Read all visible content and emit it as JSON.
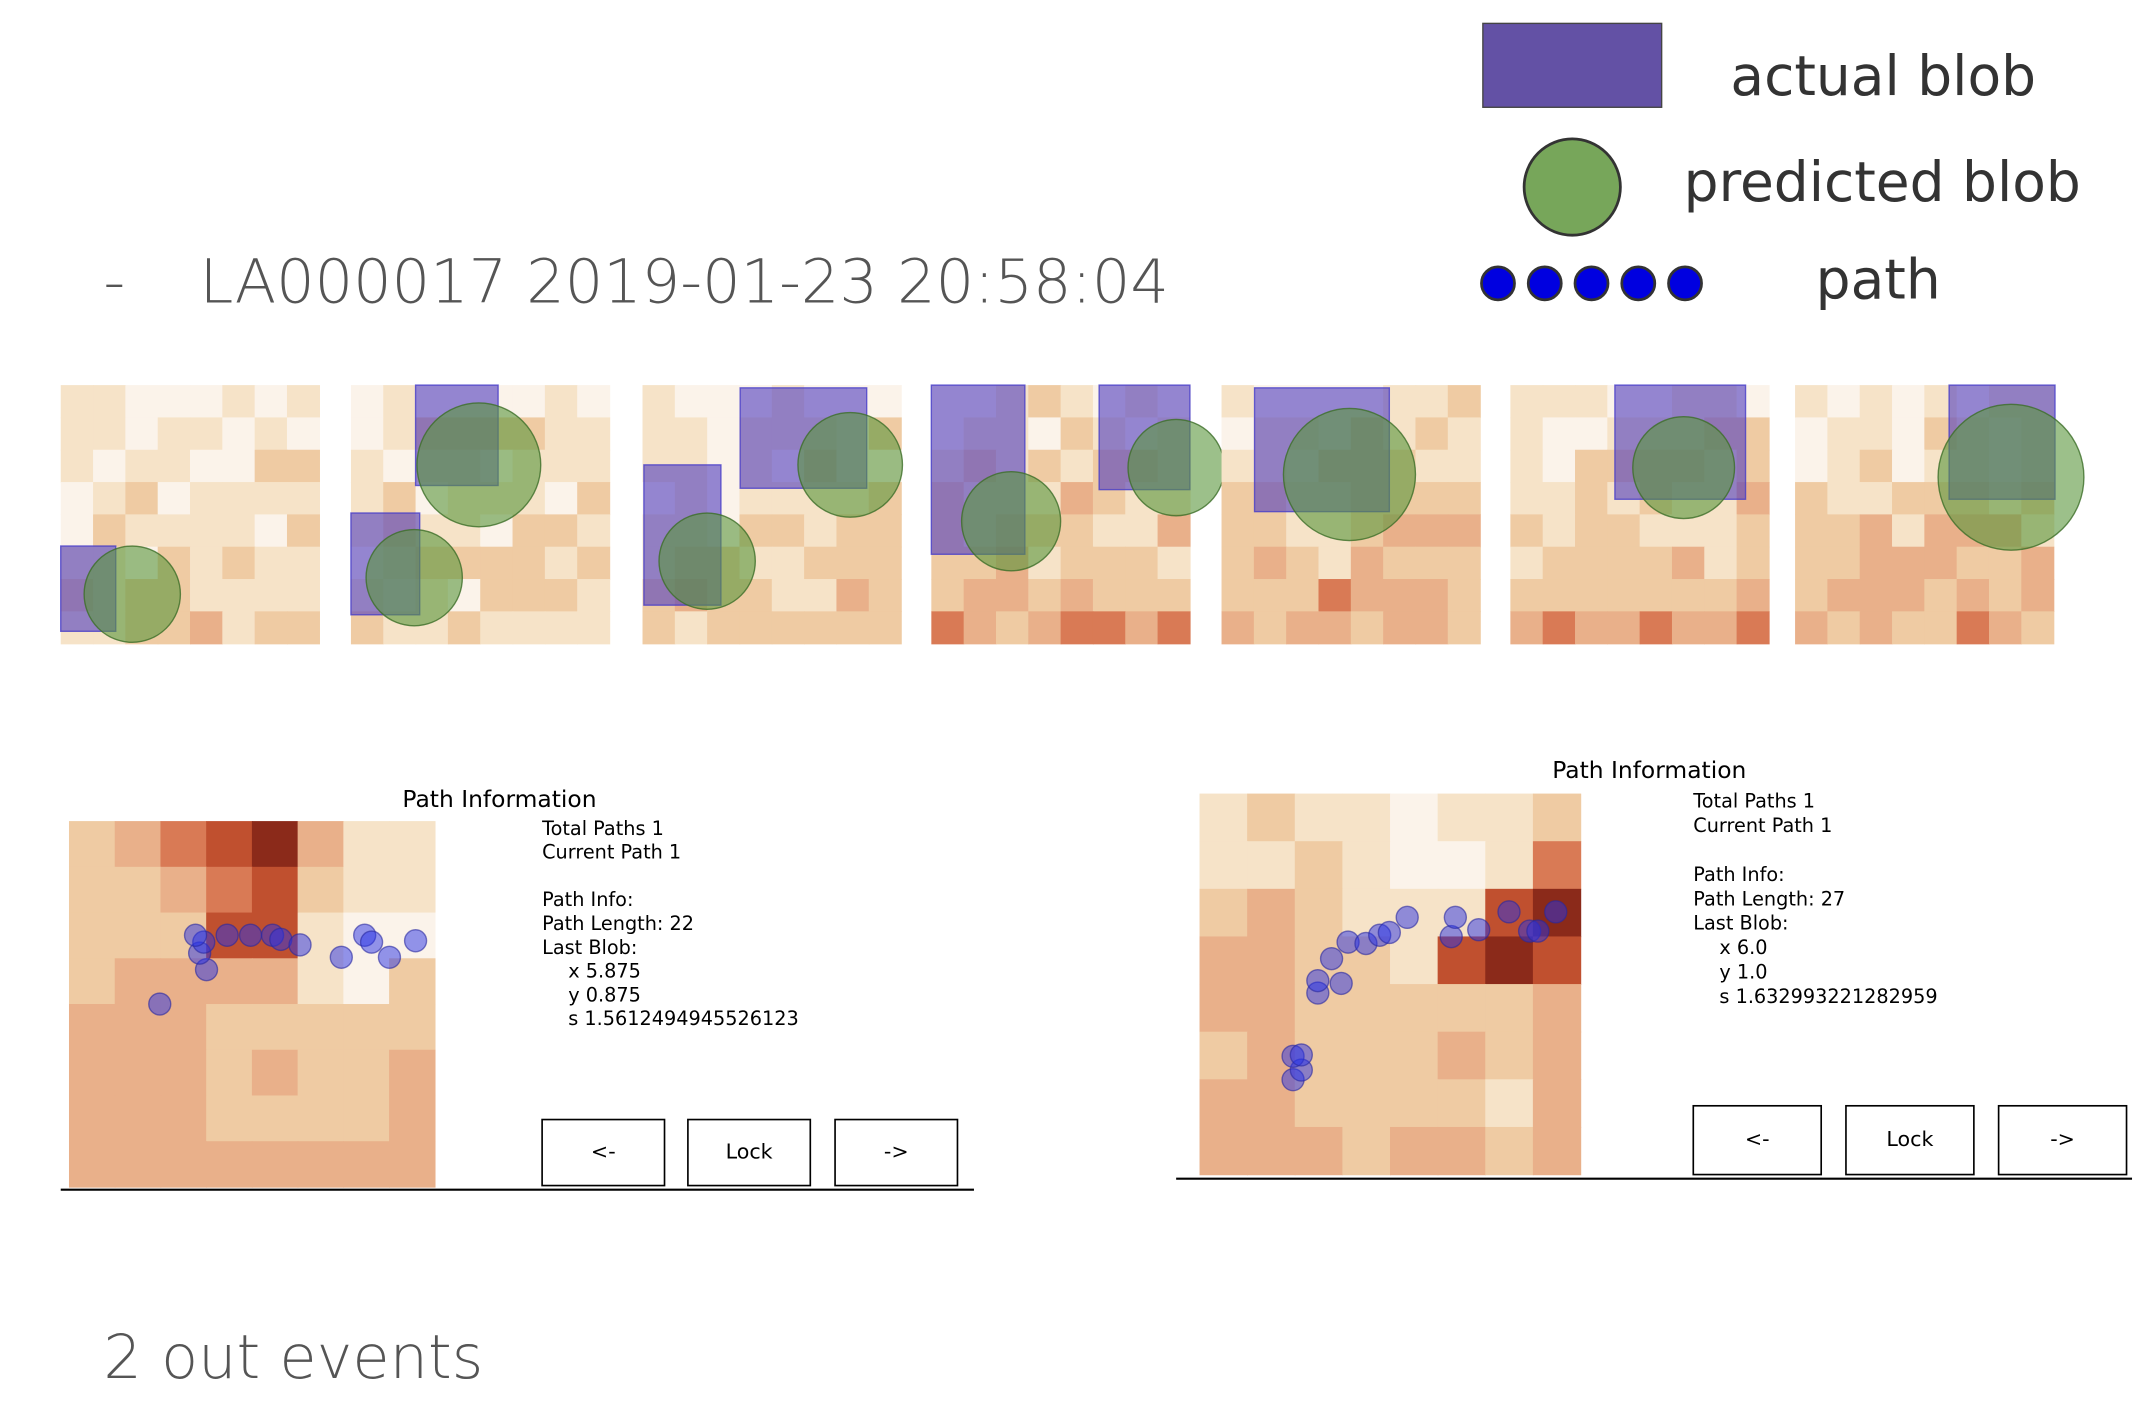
{
  "legend": {
    "items": [
      "actual blob",
      "predicted blob",
      "path"
    ]
  },
  "header": {
    "dash": "-",
    "title": "LA000017 2019-01-23 20:58:04"
  },
  "panels": [
    {
      "title": "Path Information",
      "lines": [
        "Total Paths 1",
        "Current Path 1",
        "Path Info:",
        "Path Length: 22",
        "Last Blob:",
        "x 5.875",
        "y 0.875",
        "s 1.5612494945526123"
      ],
      "buttons": [
        "<-",
        "Lock",
        "->"
      ]
    },
    {
      "title": "Path Information",
      "lines": [
        "Total Paths 1",
        "Current Path 1",
        "Path Info:",
        "Path Length: 27",
        "Last Blob:",
        "x 6.0",
        "y 1.0",
        "s 1.632993221282959"
      ],
      "buttons": [
        "<-",
        "Lock",
        "->"
      ]
    }
  ],
  "footer": "2 out events"
}
